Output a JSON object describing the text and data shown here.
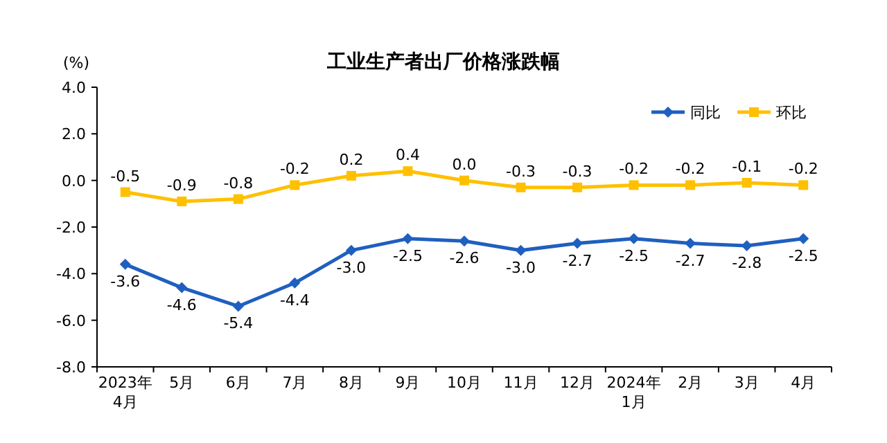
{
  "chart_data": {
    "type": "line",
    "title": "工业生产者出厂价格涨跌幅",
    "ylabel": "(%)",
    "categories": [
      "2023年\n4月",
      "5月",
      "6月",
      "7月",
      "8月",
      "9月",
      "10月",
      "11月",
      "12月",
      "2024年\n1月",
      "2月",
      "3月",
      "4月"
    ],
    "series": [
      {
        "name": "同比",
        "color": "#1f5fbf",
        "marker": "diamond",
        "values": [
          -3.6,
          -4.6,
          -5.4,
          -4.4,
          -3.0,
          -2.5,
          -2.6,
          -3.0,
          -2.7,
          -2.5,
          -2.7,
          -2.8,
          -2.5
        ],
        "value_labels": [
          "-3.6",
          "-4.6",
          "-5.4",
          "-4.4",
          "-3.0",
          "-2.5",
          "-2.6",
          "-3.0",
          "-2.7",
          "-2.5",
          "-2.7",
          "-2.8",
          "-2.5"
        ]
      },
      {
        "name": "环比",
        "color": "#ffc000",
        "marker": "square",
        "values": [
          -0.5,
          -0.9,
          -0.8,
          -0.2,
          0.2,
          0.4,
          0.0,
          -0.3,
          -0.3,
          -0.2,
          -0.2,
          -0.1,
          -0.2
        ],
        "value_labels": [
          "-0.5",
          "-0.9",
          "-0.8",
          "-0.2",
          "0.2",
          "0.4",
          "0.0",
          "-0.3",
          "-0.3",
          "-0.2",
          "-0.2",
          "-0.1",
          "-0.2"
        ]
      }
    ],
    "ylim": [
      -8,
      4
    ],
    "yticks": [
      {
        "value": 4,
        "label": "4.0"
      },
      {
        "value": 2,
        "label": "2.0"
      },
      {
        "value": 0,
        "label": "0.0"
      },
      {
        "value": -2,
        "label": "-2.0"
      },
      {
        "value": -4,
        "label": "-4.0"
      },
      {
        "value": -6,
        "label": "-6.0"
      },
      {
        "value": -8,
        "label": "-8.0"
      }
    ],
    "legend": "top right",
    "grid": false,
    "line_style": "solid"
  }
}
